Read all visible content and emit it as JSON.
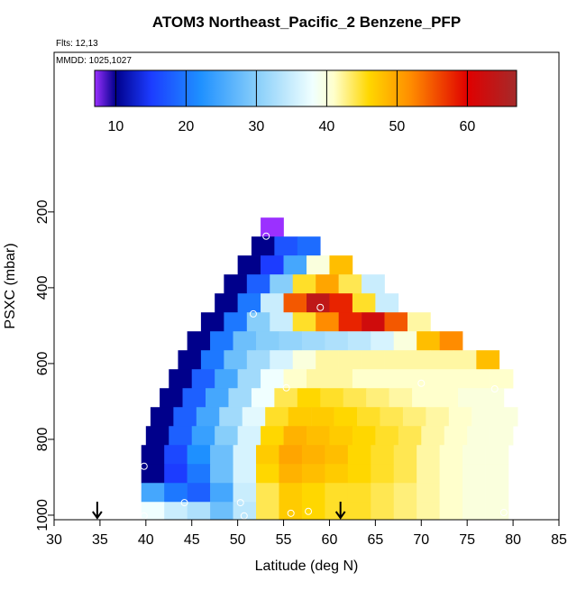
{
  "chart_data": {
    "type": "curtain",
    "title": "ATOM3 Northeast_Pacific_2 Benzene_PFP",
    "flights": "Flts: 12,13",
    "dates": "MMDD: 1025,1027",
    "xlabel": "Latitude (deg N)",
    "ylabel": "PSXC (mbar)",
    "xlim": [
      30,
      85
    ],
    "xticks": [
      30,
      35,
      40,
      45,
      50,
      55,
      60,
      65,
      70,
      75,
      80,
      85
    ],
    "ylim": [
      1012,
      -221
    ],
    "yticks": [
      200,
      400,
      600,
      800,
      1000
    ],
    "colorbar_lim": [
      7,
      67
    ],
    "colorbar_ticks": [
      10,
      20,
      30,
      40,
      50,
      60
    ],
    "colorscale": [
      [
        7,
        "#9b30ff"
      ],
      [
        10,
        "#00008b"
      ],
      [
        15,
        "#1c3cff"
      ],
      [
        22,
        "#1e90ff"
      ],
      [
        30,
        "#87cefa"
      ],
      [
        38,
        "#f0ffff"
      ],
      [
        41,
        "#ffffcc"
      ],
      [
        46,
        "#ffd700"
      ],
      [
        52,
        "#ff8c00"
      ],
      [
        60,
        "#e00000"
      ],
      [
        67,
        "#a52a2a"
      ]
    ],
    "lat_step": 2.5,
    "row_height": 50,
    "rows": [
      {
        "pressure": 240,
        "lat_start": 52.5,
        "values": [
          6
        ]
      },
      {
        "pressure": 290,
        "lat_start": 51.5,
        "values": [
          10,
          17,
          19
        ]
      },
      {
        "pressure": 340,
        "lat_start": 50,
        "values": [
          10,
          15,
          25,
          40,
          48
        ]
      },
      {
        "pressure": 390,
        "lat_start": 48.5,
        "values": [
          10,
          18,
          30,
          45,
          50,
          44,
          35
        ]
      },
      {
        "pressure": 440,
        "lat_start": 47.5,
        "values": [
          10,
          20,
          35,
          55,
          64,
          58,
          45,
          35
        ]
      },
      {
        "pressure": 490,
        "lat_start": 46,
        "values": [
          10,
          20,
          30,
          35,
          45,
          52,
          58,
          62,
          55,
          42
        ]
      },
      {
        "pressure": 540,
        "lat_start": 44.5,
        "values": [
          10,
          20,
          28,
          30,
          31,
          32,
          33,
          34,
          36,
          40,
          48,
          52
        ]
      },
      {
        "pressure": 590,
        "lat_start": 43.5,
        "values": [
          10,
          20,
          28,
          32,
          36,
          40,
          42,
          42,
          42,
          42,
          42,
          42,
          42,
          48
        ]
      },
      {
        "pressure": 640,
        "lat_start": 42.5,
        "values": [
          10,
          18,
          25,
          32,
          38,
          41,
          42,
          42,
          41,
          41,
          41,
          41,
          41,
          41,
          41
        ]
      },
      {
        "pressure": 690,
        "lat_start": 41.5,
        "values": [
          10,
          18,
          25,
          32,
          38,
          44,
          46,
          45,
          44,
          43,
          42,
          41,
          41,
          40,
          40
        ]
      },
      {
        "pressure": 740,
        "lat_start": 40.5,
        "values": [
          10,
          18,
          25,
          32,
          37,
          45,
          47,
          47,
          46,
          45,
          44,
          43,
          42,
          41,
          40,
          40
        ]
      },
      {
        "pressure": 790,
        "lat_start": 40,
        "values": [
          10,
          18,
          24,
          30,
          36,
          46,
          49,
          48,
          47,
          46,
          45,
          44,
          42,
          41,
          40,
          40
        ]
      },
      {
        "pressure": 840,
        "lat_start": 39.5,
        "values": [
          10,
          16,
          22,
          28,
          36,
          47,
          50,
          49,
          48,
          46,
          45,
          44,
          42,
          41,
          40,
          40
        ]
      },
      {
        "pressure": 890,
        "lat_start": 39.5,
        "values": [
          10,
          15,
          20,
          28,
          36,
          46,
          49,
          48,
          47,
          46,
          45,
          44,
          42,
          41,
          40,
          40
        ]
      },
      {
        "pressure": 940,
        "lat_start": 39.5,
        "values": [
          25,
          20,
          18,
          25,
          35,
          44,
          47,
          46,
          45,
          45,
          44,
          43,
          42,
          41,
          40,
          40
        ]
      },
      {
        "pressure": 990,
        "lat_start": 39.5,
        "values": [
          38,
          35,
          33,
          28,
          34,
          44,
          47,
          46,
          45,
          45,
          44,
          43,
          42,
          41,
          40,
          40
        ]
      }
    ],
    "samples": {
      "x": [
        53.1,
        51.7,
        59,
        55.3,
        70,
        78,
        39.8,
        44.2,
        50.3,
        50.7,
        55.8,
        57.7,
        79,
        39.8
      ],
      "y": [
        264,
        469,
        452,
        664,
        652,
        667,
        871,
        967,
        967,
        1002,
        995,
        990,
        993,
        1002
      ]
    },
    "arrows_x": [
      34.7,
      61.2
    ]
  }
}
